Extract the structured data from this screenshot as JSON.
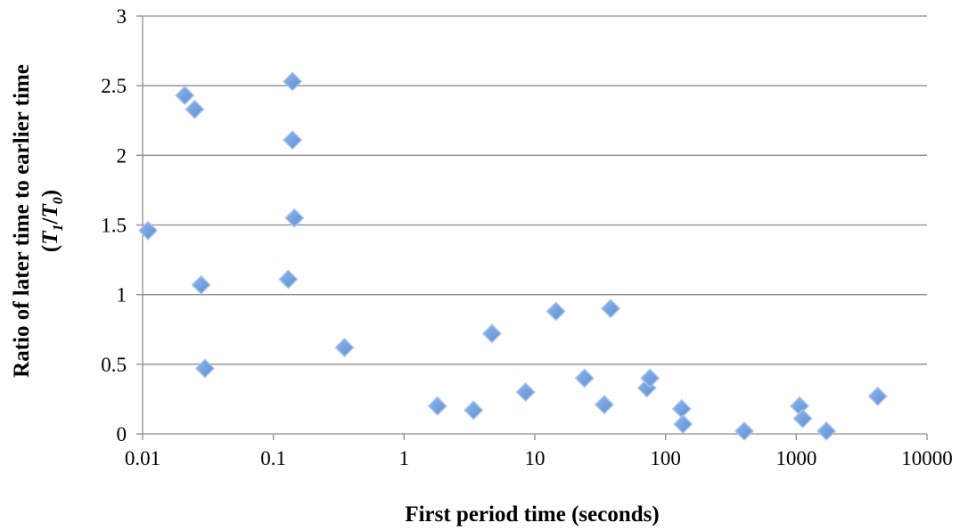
{
  "chart_data": {
    "type": "scatter",
    "title": "",
    "xlabel": "First period time (seconds)",
    "ylabel": {
      "line1": "Ratio of later time to earlier time",
      "line2_open": "(",
      "t1": "T",
      "t1_sub": "1",
      "slash": "/",
      "t0": "T",
      "t0_sub": "0",
      "line2_close": ")"
    },
    "x_scale": "log",
    "xlim": [
      0.01,
      10000
    ],
    "ylim": [
      0,
      3
    ],
    "x_ticks": [
      0.01,
      0.1,
      1,
      10,
      100,
      1000,
      10000
    ],
    "x_tick_labels": [
      "0.01",
      "0.1",
      "1",
      "10",
      "100",
      "1000",
      "10000"
    ],
    "y_ticks": [
      0,
      0.5,
      1,
      1.5,
      2,
      2.5,
      3
    ],
    "y_tick_labels": [
      "0",
      "0.5",
      "1",
      "1.5",
      "2",
      "2.5",
      "3"
    ],
    "grid": "horizontal",
    "legend": "none",
    "marker": "diamond",
    "marker_color": "#5b8ed6",
    "points": [
      {
        "x": 0.011,
        "y": 1.46
      },
      {
        "x": 0.021,
        "y": 2.43
      },
      {
        "x": 0.025,
        "y": 2.33
      },
      {
        "x": 0.028,
        "y": 1.07
      },
      {
        "x": 0.03,
        "y": 0.47
      },
      {
        "x": 0.13,
        "y": 1.11
      },
      {
        "x": 0.14,
        "y": 2.53
      },
      {
        "x": 0.14,
        "y": 2.11
      },
      {
        "x": 0.145,
        "y": 1.55
      },
      {
        "x": 0.35,
        "y": 0.62
      },
      {
        "x": 1.8,
        "y": 0.2
      },
      {
        "x": 3.4,
        "y": 0.17
      },
      {
        "x": 4.7,
        "y": 0.72
      },
      {
        "x": 8.5,
        "y": 0.3
      },
      {
        "x": 14.5,
        "y": 0.88
      },
      {
        "x": 24,
        "y": 0.4
      },
      {
        "x": 34,
        "y": 0.21
      },
      {
        "x": 38,
        "y": 0.9
      },
      {
        "x": 72,
        "y": 0.33
      },
      {
        "x": 76,
        "y": 0.4
      },
      {
        "x": 133,
        "y": 0.18
      },
      {
        "x": 136,
        "y": 0.07
      },
      {
        "x": 400,
        "y": 0.02
      },
      {
        "x": 1060,
        "y": 0.2
      },
      {
        "x": 1120,
        "y": 0.11
      },
      {
        "x": 1700,
        "y": 0.02
      },
      {
        "x": 4200,
        "y": 0.27
      }
    ]
  }
}
